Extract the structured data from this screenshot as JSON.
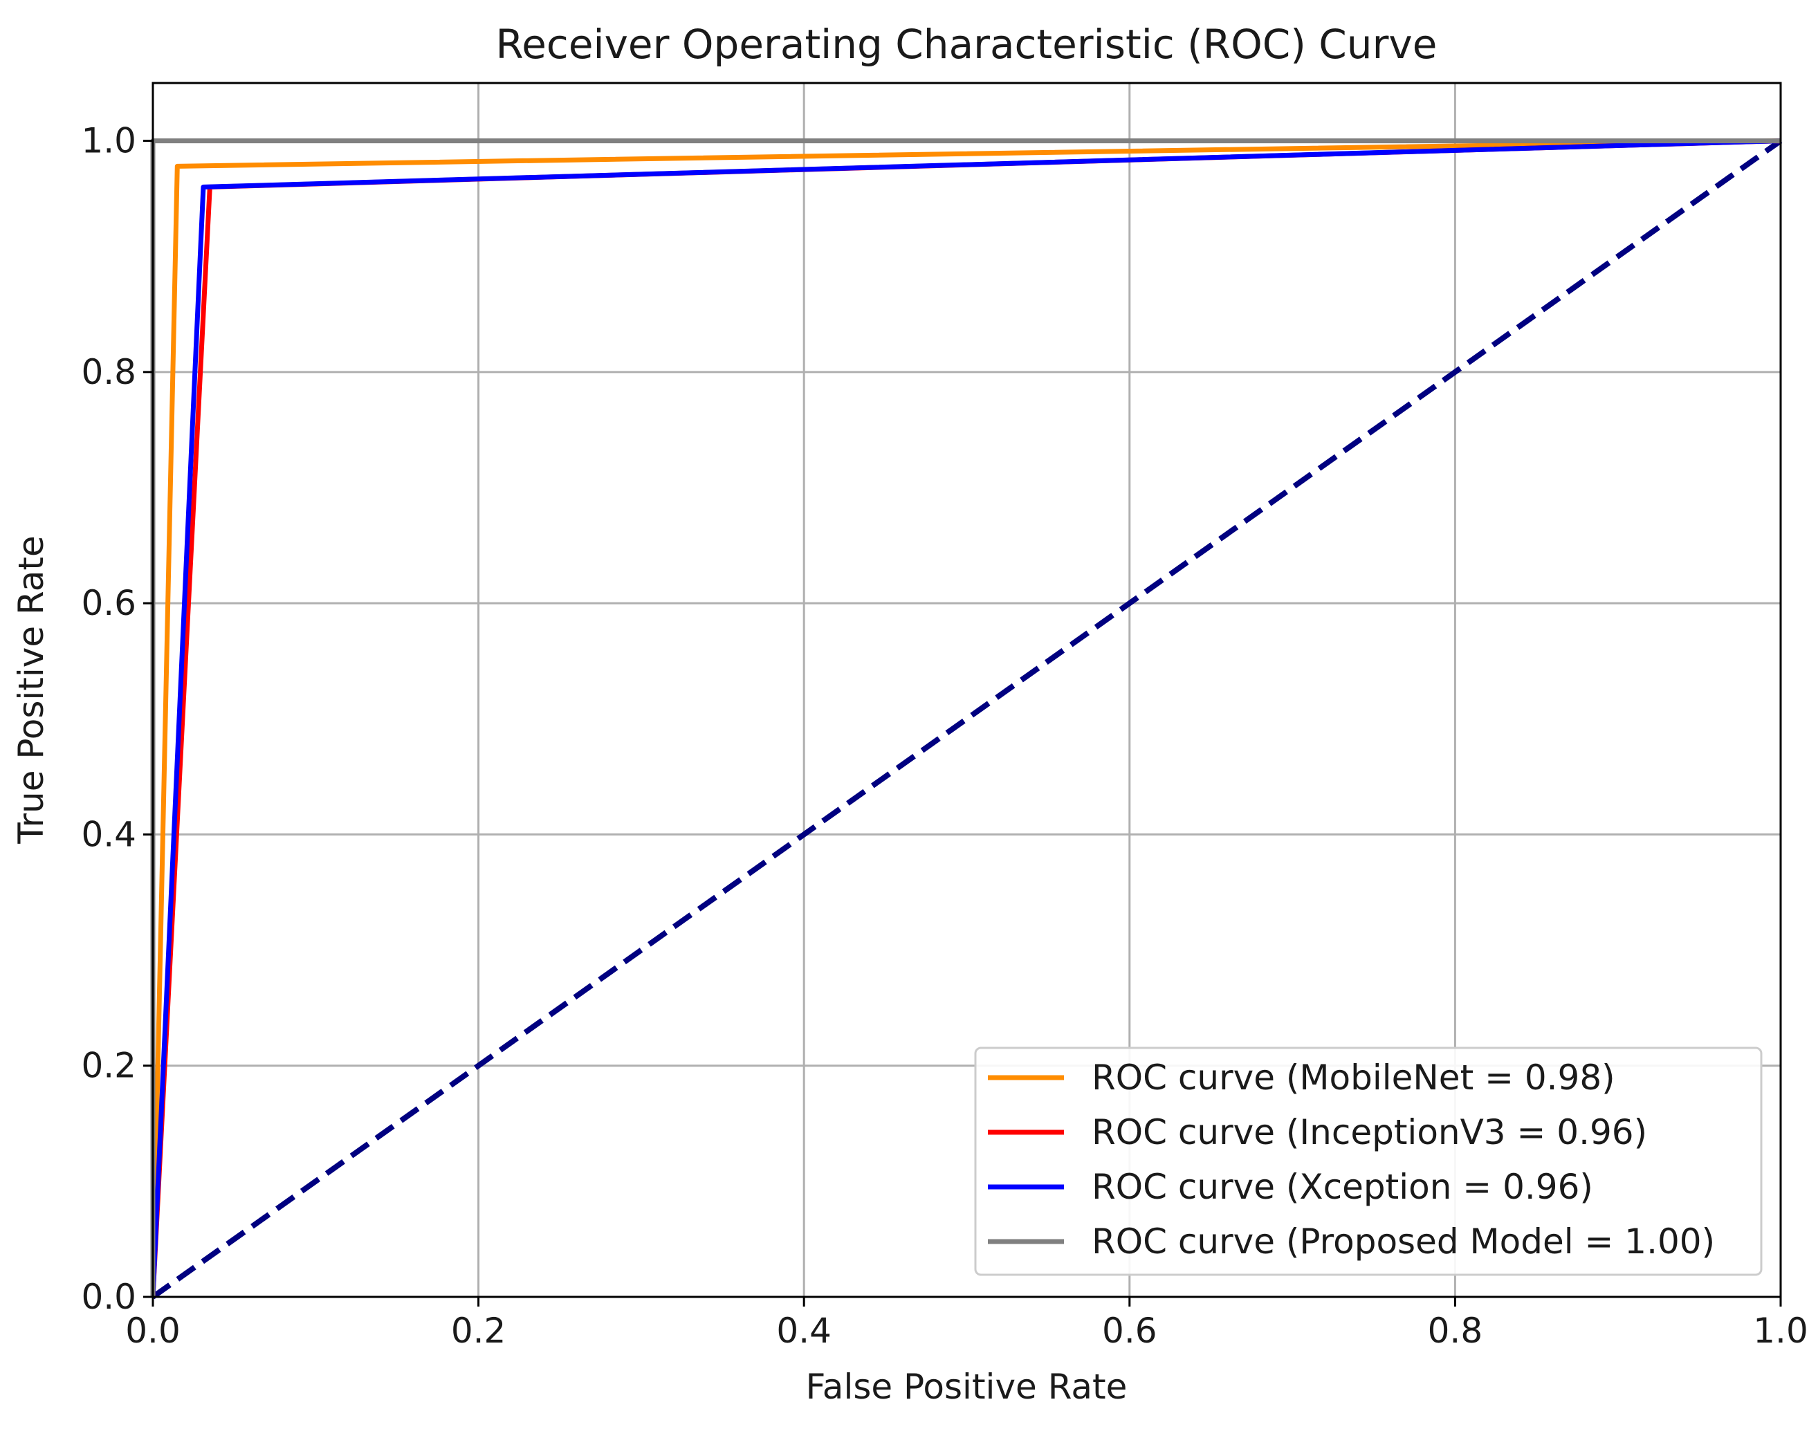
{
  "chart_data": {
    "type": "line",
    "title": "Receiver Operating Characteristic (ROC) Curve",
    "xlabel": "False Positive Rate",
    "ylabel": "True Positive Rate",
    "xlim": [
      0.0,
      1.0
    ],
    "ylim": [
      0.0,
      1.05
    ],
    "grid": true,
    "legend_position": "lower-right",
    "xticks": [
      0.0,
      0.2,
      0.4,
      0.6,
      0.8,
      1.0
    ],
    "yticks": [
      0.0,
      0.2,
      0.4,
      0.6,
      0.8,
      1.0
    ],
    "xtick_labels": [
      "0.0",
      "0.2",
      "0.4",
      "0.6",
      "0.8",
      "1.0"
    ],
    "ytick_labels": [
      "0.0",
      "0.2",
      "0.4",
      "0.6",
      "0.8",
      "1.0"
    ],
    "series": [
      {
        "name": "ROC curve (MobileNet = 0.98)",
        "color": "#ff8c00",
        "style": "solid",
        "x": [
          0.0,
          0.015,
          1.0
        ],
        "y": [
          0.0,
          0.978,
          1.0
        ]
      },
      {
        "name": "ROC curve (InceptionV3 = 0.96)",
        "color": "#ff0000",
        "style": "solid",
        "x": [
          0.0,
          0.035,
          1.0
        ],
        "y": [
          0.0,
          0.96,
          1.0
        ]
      },
      {
        "name": "ROC curve (Xception = 0.96)",
        "color": "#0000ff",
        "style": "solid",
        "x": [
          0.0,
          0.031,
          1.0
        ],
        "y": [
          0.0,
          0.96,
          1.0
        ]
      },
      {
        "name": "ROC curve (Proposed Model = 1.00)",
        "color": "#808080",
        "style": "solid",
        "x": [
          0.0,
          0.0,
          1.0
        ],
        "y": [
          0.0,
          1.0,
          1.0
        ]
      }
    ],
    "reference_line": {
      "color": "#000080",
      "style": "dashed",
      "x": [
        0.0,
        1.0
      ],
      "y": [
        0.0,
        1.0
      ]
    }
  }
}
